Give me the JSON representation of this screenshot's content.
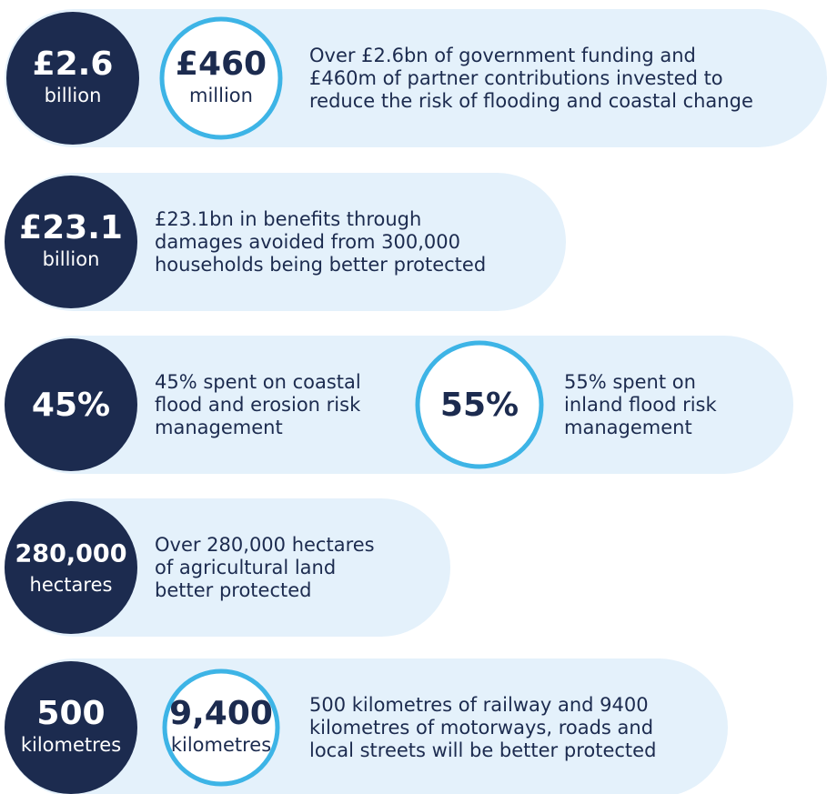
{
  "rows": [
    {
      "circles": [
        {
          "number": "£2.6",
          "unit": "billion"
        },
        {
          "number": "£460",
          "unit": "million"
        }
      ],
      "lines": [
        "Over £2.6bn of government funding and",
        "£460m of partner contributions invested to",
        "reduce the risk of flooding and coastal change"
      ]
    },
    {
      "circles": [
        {
          "number": "£23.1",
          "unit": "billion"
        }
      ],
      "lines": [
        "£23.1bn in benefits through",
        "damages avoided from 300,000",
        "households being better protected"
      ]
    },
    {
      "circles": [
        {
          "number": "45%"
        }
      ],
      "lines": [
        "45% spent on coastal",
        "flood and erosion risk",
        "management"
      ],
      "second": {
        "circle": {
          "number": "55%"
        },
        "lines": [
          "55% spent on",
          "inland flood risk",
          "management"
        ]
      }
    },
    {
      "circles": [
        {
          "number": "280,000",
          "unit": "hectares"
        }
      ],
      "lines": [
        "Over 280,000 hectares",
        "of agricultural land",
        "better protected"
      ]
    },
    {
      "circles": [
        {
          "number": "500",
          "unit": "kilometres"
        },
        {
          "number": "9,400",
          "unit": "kilometres"
        }
      ],
      "lines": [
        "500 kilometres of railway and 9400",
        "kilometres of motorways, roads and",
        "local streets will be better protected"
      ]
    }
  ]
}
